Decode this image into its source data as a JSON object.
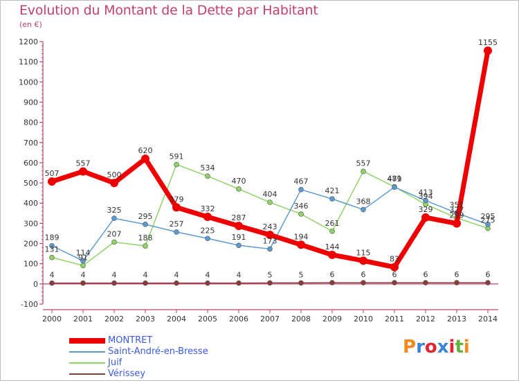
{
  "title": "Evolution du Montant de la Dette par Habitant",
  "subtitle": "(en €)",
  "logo": {
    "text": "Proxiti",
    "colors": [
      "#f08a1c",
      "#3a83d6",
      "#e5232f",
      "#3a83d6",
      "#e5232f",
      "#62b33b",
      "#f08a1c"
    ]
  },
  "chart_data": {
    "type": "line",
    "x": [
      "2000",
      "2001",
      "2002",
      "2003",
      "2004",
      "2005",
      "2006",
      "2007",
      "2008",
      "2009",
      "2010",
      "2011",
      "2012",
      "2013",
      "2014"
    ],
    "ylim": [
      -100,
      1200
    ],
    "yticks": [
      -100,
      0,
      100,
      200,
      300,
      400,
      500,
      600,
      700,
      800,
      900,
      1000,
      1100,
      1200
    ],
    "grid": false,
    "legend_position": "bottom-left",
    "series": [
      {
        "name": "MONTRET",
        "color": "#ee0000",
        "values": [
          507,
          557,
          500,
          620,
          379,
          332,
          287,
          243,
          194,
          144,
          115,
          83,
          329,
          299,
          1155
        ],
        "labels": [
          "507",
          "557",
          "500",
          "620",
          "379",
          "332",
          "287",
          "243",
          "194",
          "144",
          "115",
          "83",
          "329",
          "299",
          "1155"
        ]
      },
      {
        "name": "Saint-André-en-Bresse",
        "color": "#5b9bd0",
        "values": [
          189,
          114,
          325,
          295,
          257,
          225,
          191,
          173,
          467,
          421,
          368,
          479,
          413,
          351,
          295
        ],
        "labels": [
          "189",
          "114",
          "325",
          "295",
          "257",
          "225",
          "191",
          "173",
          "467",
          "421",
          "368",
          "479",
          "413",
          "351",
          "295"
        ]
      },
      {
        "name": "Juif",
        "color": "#8ed464",
        "values": [
          131,
          91,
          207,
          188,
          591,
          534,
          470,
          404,
          346,
          261,
          557,
          481,
          394,
          327,
          275
        ],
        "labels": [
          "131",
          "91",
          "207",
          "188",
          "591",
          "534",
          "470",
          "404",
          "346",
          "261",
          "557",
          "481",
          "394",
          "327",
          "275"
        ]
      },
      {
        "name": "Vérissey",
        "color": "#8b3a3a",
        "values": [
          4,
          4,
          4,
          4,
          4,
          4,
          4,
          5,
          5,
          6,
          6,
          6,
          6,
          6,
          6
        ],
        "labels": [
          "4",
          "4",
          "4",
          "4",
          "4",
          "4",
          "4",
          "5",
          "5",
          "6",
          "6",
          "6",
          "6",
          "6",
          "6"
        ]
      }
    ]
  }
}
